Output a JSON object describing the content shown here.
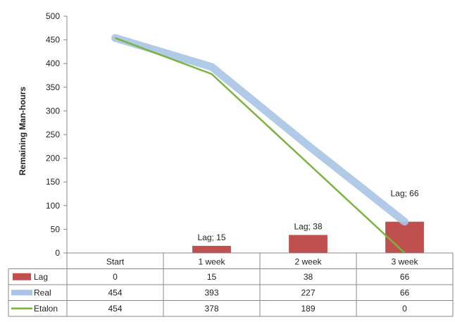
{
  "chart_data": {
    "type": "bar",
    "ylabel": "Remaining Man-hours",
    "ylim": [
      0,
      500
    ],
    "yticks": [
      0,
      50,
      100,
      150,
      200,
      250,
      300,
      350,
      400,
      450,
      500
    ],
    "categories": [
      "Start",
      "1 week",
      "2 week",
      "3 week"
    ],
    "grid": false,
    "legend": "data-table",
    "series": [
      {
        "name": "Lag",
        "type": "bar",
        "color": "#c0504d",
        "values": [
          0,
          15,
          38,
          66
        ],
        "data_labels": [
          "",
          "Lag; 15",
          "Lag; 38",
          "Lag; 66"
        ]
      },
      {
        "name": "Real",
        "type": "line",
        "color": "#a9c4e6",
        "values": [
          454,
          393,
          227,
          66
        ]
      },
      {
        "name": "Etalon",
        "type": "line",
        "color": "#7ab33e",
        "values": [
          454,
          378,
          189,
          0
        ]
      }
    ]
  }
}
